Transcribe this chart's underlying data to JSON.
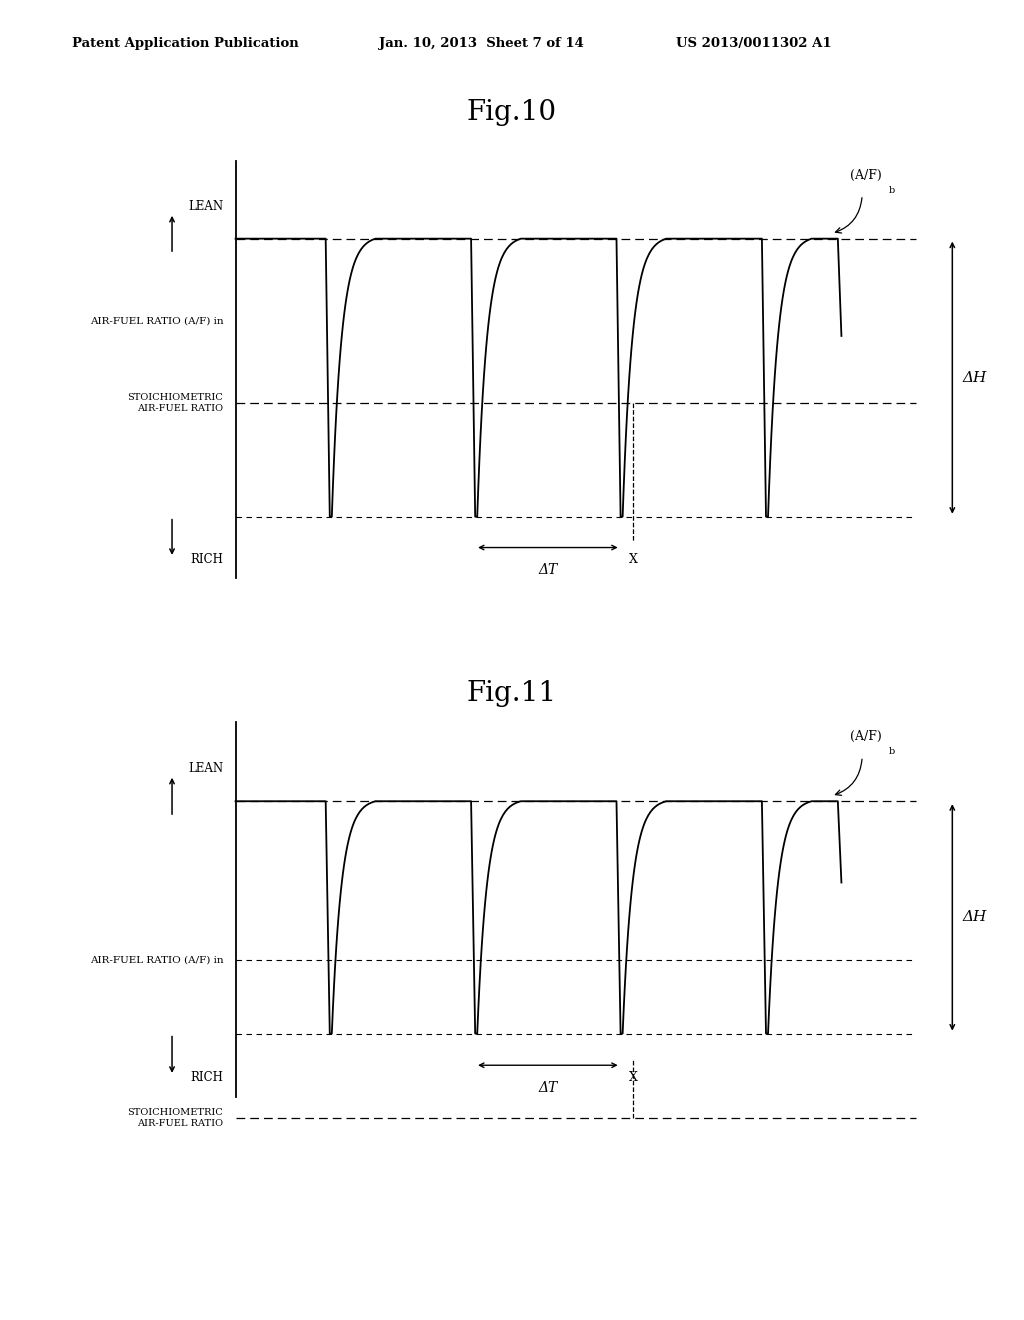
{
  "bg_color": "#ffffff",
  "header_left": "Patent Application Publication",
  "header_mid": "Jan. 10, 2013  Sheet 7 of 14",
  "header_right": "US 2013/0011302 A1",
  "fig10_title": "Fig.10",
  "fig11_title": "Fig.11",
  "lean_label": "LEAN",
  "rich_label": "RICH",
  "afr_label": "AIR-FUEL RATIO (A/F) in",
  "stoich_label": "STOICHIOMETRIC\nAIR-FUEL RATIO",
  "afb_label": "(A/F)",
  "afb_sub": "b",
  "delta_t_label": "ΔT",
  "delta_h_label": "ΔH",
  "x_label": "X",
  "line_color": "#000000",
  "text_color": "#000000"
}
